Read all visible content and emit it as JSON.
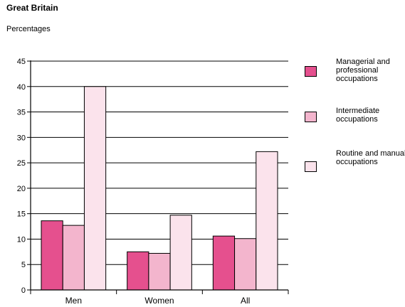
{
  "header": {
    "region": "Great Britain",
    "unit": "Percentages"
  },
  "chart_data": {
    "type": "bar",
    "title": "",
    "xlabel": "",
    "ylabel": "",
    "ylim": [
      0,
      45
    ],
    "yticks": [
      0,
      5,
      10,
      15,
      20,
      25,
      30,
      35,
      40,
      45
    ],
    "categories": [
      "Men",
      "Women",
      "All"
    ],
    "series": [
      {
        "name": "Managerial and professional occupations",
        "color": "#e5508e",
        "values": [
          13.6,
          7.5,
          10.6
        ]
      },
      {
        "name": "Intermediate occupations",
        "color": "#f3b5cd",
        "values": [
          12.7,
          7.2,
          10.1
        ]
      },
      {
        "name": "Routine and manual occupations",
        "color": "#fbe3ec",
        "values": [
          40,
          14.7,
          27.2
        ]
      }
    ],
    "grid": true,
    "legend_position": "right"
  }
}
